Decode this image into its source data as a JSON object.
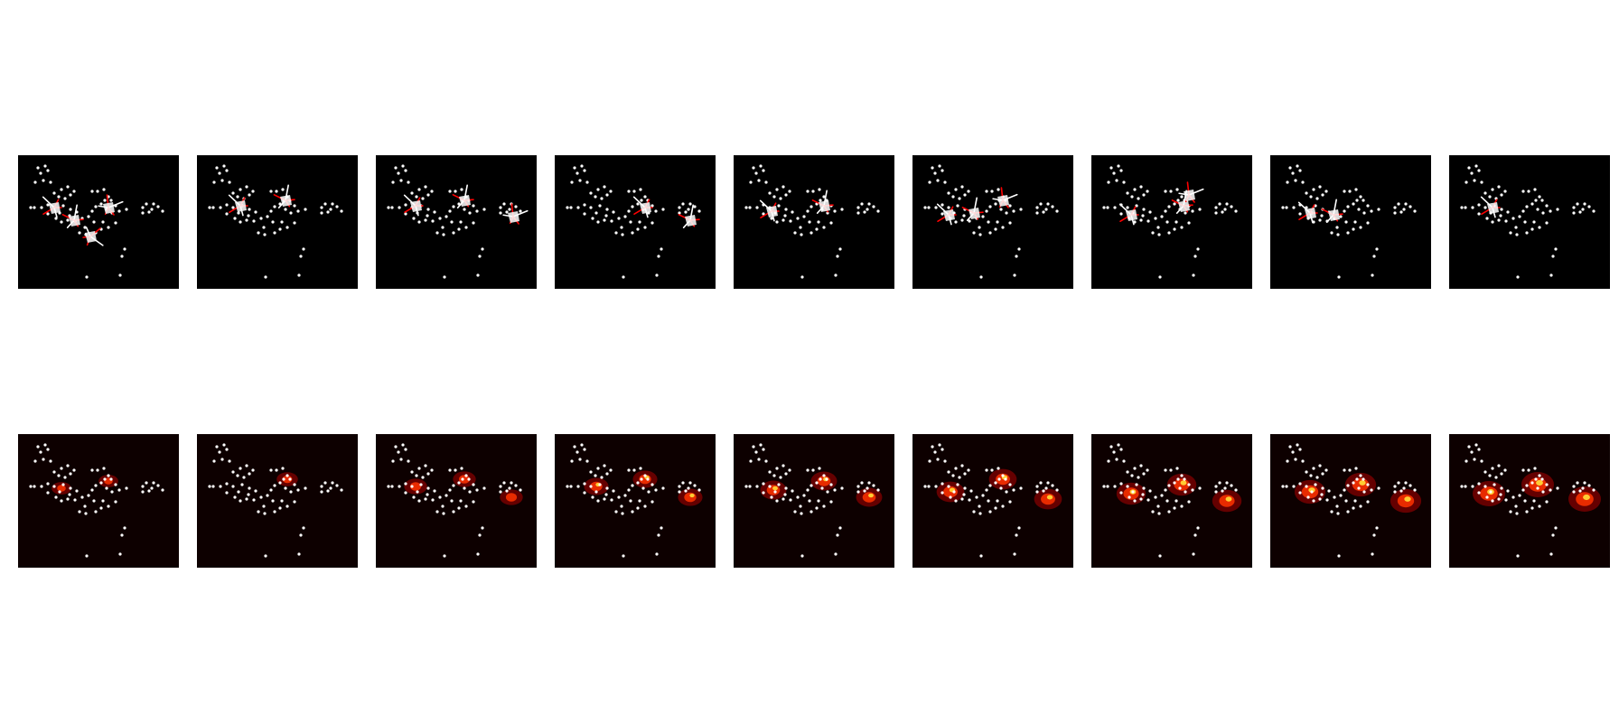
{
  "figure": {
    "background": "#ffffff",
    "panel_count_per_row": 9,
    "rows": [
      {
        "id": "top",
        "panel_background": "#000000",
        "overlay": "trajectories"
      },
      {
        "id": "bottom",
        "panel_background": "#0d0000",
        "overlay": "heatmap"
      }
    ],
    "colors": {
      "dots": "#ffffff",
      "trajectory_primary": "#ff0000",
      "trajectory_secondary": "#ffffff",
      "heat_low": "#8b0000",
      "heat_mid": "#ff3300",
      "heat_high": "#ffcc33"
    }
  }
}
